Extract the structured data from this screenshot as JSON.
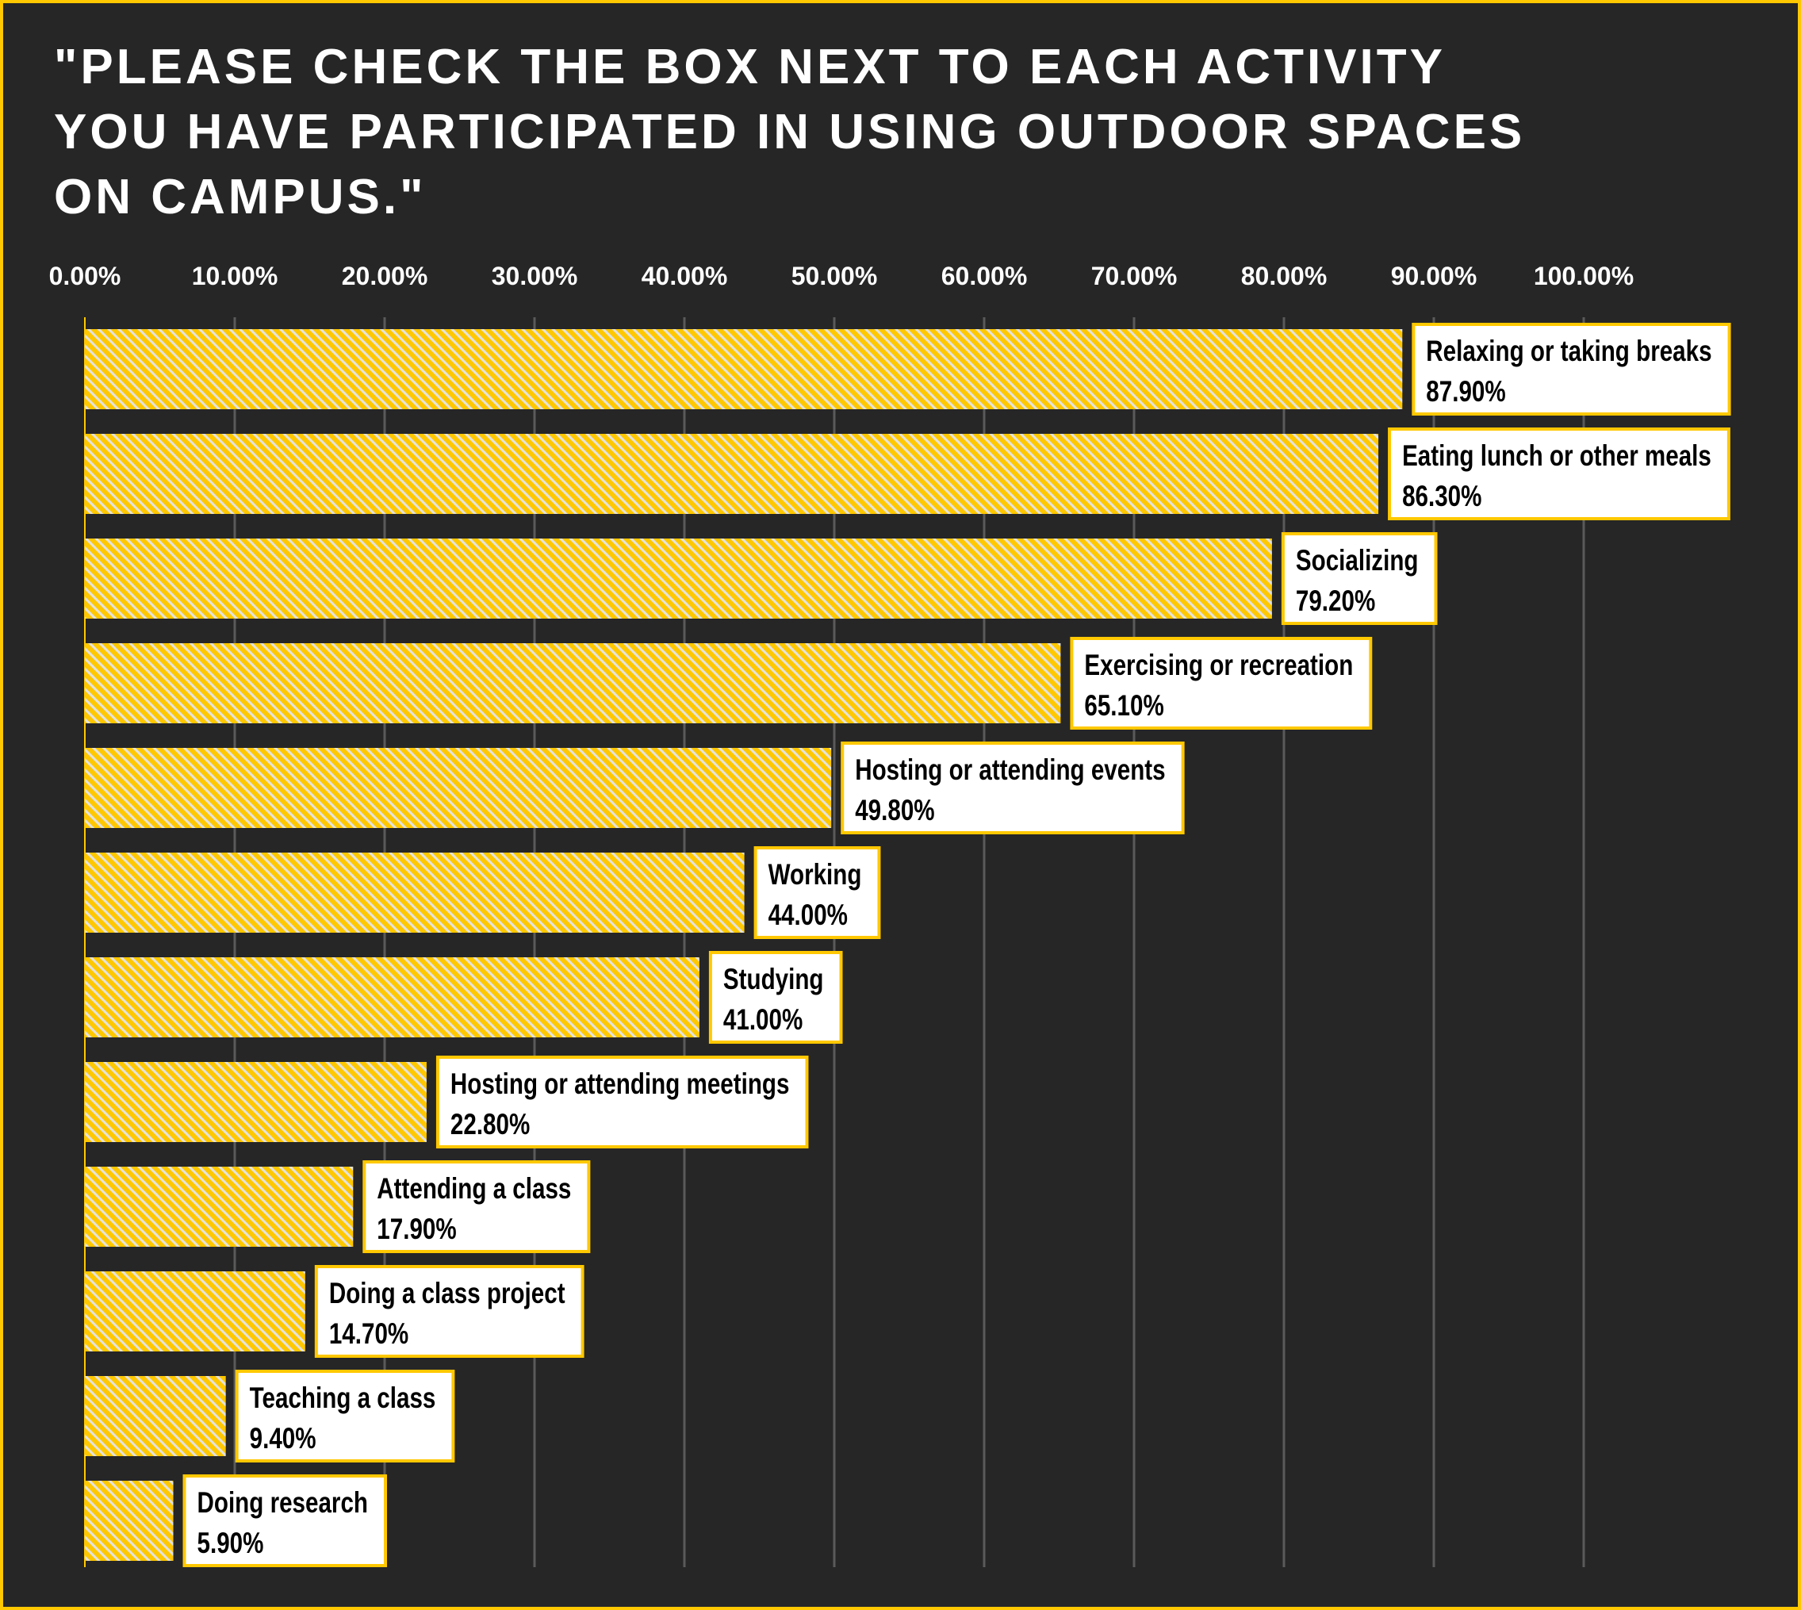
{
  "chart_data": {
    "type": "bar",
    "orientation": "horizontal",
    "title": "\"Please check the box next to each activity you have participated in using outdoor spaces on campus.\"",
    "xlabel": "",
    "ylabel": "",
    "xlim": [
      0,
      100
    ],
    "x_ticks": [
      "0.00%",
      "10.00%",
      "20.00%",
      "30.00%",
      "40.00%",
      "50.00%",
      "60.00%",
      "70.00%",
      "80.00%",
      "90.00%",
      "100.00%"
    ],
    "x_axis_position": "top",
    "grid": true,
    "categories": [
      "Relaxing or taking breaks",
      "Eating lunch or other meals",
      "Socializing",
      "Exercising or recreation",
      "Hosting or attending events",
      "Working",
      "Studying",
      "Hosting or attending meetings",
      "Attending a class",
      "Doing a class project",
      "Teaching a class",
      "Doing research"
    ],
    "values": [
      87.9,
      86.3,
      79.2,
      65.1,
      49.8,
      44.0,
      41.0,
      22.8,
      17.9,
      14.7,
      9.4,
      5.9
    ],
    "value_labels": [
      "87.90%",
      "86.30%",
      "79.20%",
      "65.10%",
      "49.80%",
      "44.00%",
      "41.00%",
      "22.80%",
      "17.90%",
      "14.70%",
      "9.40%",
      "5.90%"
    ],
    "colors": {
      "bar": "#ffc800",
      "hatch": "#e2e2e2",
      "background": "#262626",
      "grid": "#5a5a5a",
      "label_box": "#ffffff",
      "label_border": "#ffc800",
      "text": "#ffffff"
    }
  }
}
